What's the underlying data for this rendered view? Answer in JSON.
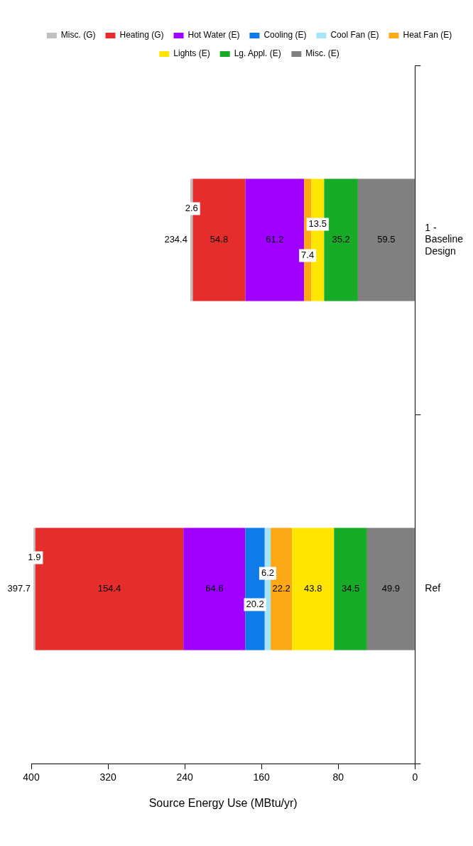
{
  "chart_data": {
    "type": "bar",
    "stacked": true,
    "orientation": "horizontal",
    "categories": [
      "1 - Baseline Design",
      "Ref"
    ],
    "xlabel": "Source Energy Use (MBtu/yr)",
    "xlim": [
      400,
      0
    ],
    "xticks": [
      400,
      320,
      240,
      160,
      80,
      0
    ],
    "grid": false,
    "legend": "top",
    "series": [
      {
        "name": "Misc. (E)",
        "color": "#808080",
        "values": [
          59.5,
          49.9
        ],
        "value_labels": [
          "59.5",
          "49.9"
        ]
      },
      {
        "name": "Lg. Appl. (E)",
        "color": "#18ab28",
        "values": [
          35.2,
          34.5
        ],
        "value_labels": [
          "35.2",
          "34.5"
        ]
      },
      {
        "name": "Lights (E)",
        "color": "#ffe600",
        "values": [
          13.5,
          43.8
        ],
        "value_labels": [
          "13.5",
          "43.8"
        ]
      },
      {
        "name": "Heat Fan (E)",
        "color": "#fca817",
        "values": [
          7.4,
          22.2
        ],
        "value_labels": [
          "7.4",
          "22.2"
        ]
      },
      {
        "name": "Cool Fan (E)",
        "color": "#a3e6fa",
        "values": [
          0,
          6.2
        ],
        "value_labels": [
          null,
          "6.2"
        ]
      },
      {
        "name": "Cooling (E)",
        "color": "#0f7be8",
        "values": [
          0,
          20.2
        ],
        "value_labels": [
          null,
          "20.2"
        ]
      },
      {
        "name": "Hot Water (E)",
        "color": "#a000ff",
        "values": [
          61.2,
          64.6
        ],
        "value_labels": [
          "61.2",
          "64.6"
        ]
      },
      {
        "name": "Heating (G)",
        "color": "#e52e2b",
        "values": [
          54.8,
          154.4
        ],
        "value_labels": [
          "54.8",
          "154.4"
        ]
      },
      {
        "name": "Misc. (G)",
        "color": "#c0c0c0",
        "values": [
          2.6,
          1.9
        ],
        "value_labels": [
          "2.6",
          "1.9"
        ]
      }
    ],
    "totals": [
      "234.4",
      "397.7"
    ]
  }
}
